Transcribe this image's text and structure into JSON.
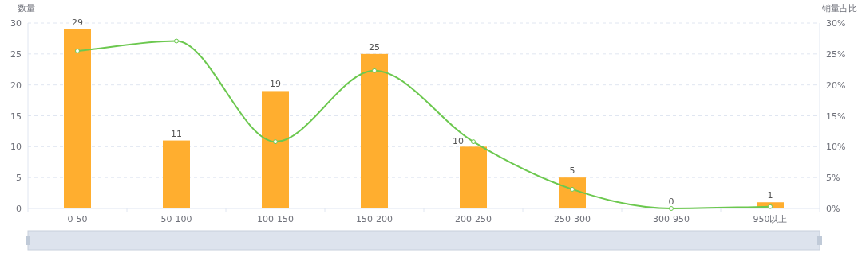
{
  "chart_data": {
    "type": "bar",
    "ylabel": "数量",
    "y2label": "销量占比",
    "categories": [
      "0-50",
      "50-100",
      "100-150",
      "150-200",
      "200-250",
      "250-300",
      "300-950",
      "950以上"
    ],
    "series": [
      {
        "type": "bar",
        "color": "#ffae2f",
        "values": [
          29,
          11,
          19,
          25,
          10,
          5,
          0,
          1
        ],
        "value_labels": [
          "29",
          "11",
          "19",
          "25",
          "10",
          "5",
          "0",
          "1"
        ]
      },
      {
        "type": "line",
        "axis": "y2",
        "color": "#6cc84f",
        "marker": "circle",
        "values": [
          25.5,
          27.1,
          10.8,
          22.3,
          10.8,
          3.1,
          0,
          0.3
        ]
      }
    ],
    "ylim": [
      0,
      30
    ],
    "yticks": [
      0,
      5,
      10,
      15,
      20,
      25,
      30
    ],
    "y2lim": [
      0,
      30
    ],
    "y2ticks": [
      {
        "value": 0,
        "label": "0%"
      },
      {
        "value": 5,
        "label": "5%"
      },
      {
        "value": 10,
        "label": "10%"
      },
      {
        "value": 15,
        "label": "15%"
      },
      {
        "value": 20,
        "label": "20%"
      },
      {
        "value": 25,
        "label": "25%"
      },
      {
        "value": 30,
        "label": "30%"
      }
    ],
    "grid": "y"
  }
}
